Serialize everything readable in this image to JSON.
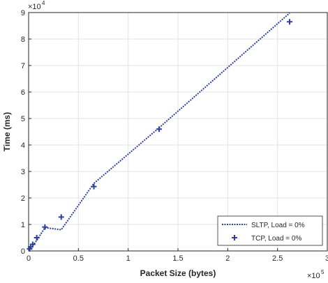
{
  "chart_data": {
    "type": "line",
    "x_label": "Packet Size (bytes)",
    "y_label": "Time (ms)",
    "x_multiplier": {
      "base": "×10",
      "exponent": "5"
    },
    "y_multiplier": {
      "base": "×10",
      "exponent": "4"
    },
    "x": [
      1024,
      2048,
      4096,
      8192,
      16384,
      32768,
      65536,
      131072,
      262144
    ],
    "series": [
      {
        "name": "SLTP, Load = 0%",
        "color": "#2e3f9e",
        "style": "dotted",
        "values": [
          500,
          1200,
          2000,
          4000,
          8800,
          8000,
          25500,
          46500,
          89800
        ]
      },
      {
        "name": "TCP, Load = 0%",
        "color": "#2e3f9e",
        "style": "plus",
        "values": [
          800,
          1500,
          2500,
          5000,
          9000,
          12800,
          24300,
          46000,
          86500
        ]
      }
    ],
    "xlim": [
      0,
      300000
    ],
    "ylim": [
      0,
      90000
    ],
    "xticks": [
      0,
      {
        "value": 50000,
        "label": "0.5"
      },
      {
        "value": 100000,
        "label": "1"
      },
      {
        "value": 150000,
        "label": "1.5"
      },
      {
        "value": 200000,
        "label": "2"
      },
      {
        "value": 250000,
        "label": "2.5"
      },
      {
        "value": 300000,
        "label": "3"
      }
    ],
    "yticks": [
      0,
      {
        "value": 10000,
        "label": "1"
      },
      {
        "value": 20000,
        "label": "2"
      },
      {
        "value": 30000,
        "label": "3"
      },
      {
        "value": 40000,
        "label": "4"
      },
      {
        "value": 50000,
        "label": "5"
      },
      {
        "value": 60000,
        "label": "6"
      },
      {
        "value": 70000,
        "label": "7"
      },
      {
        "value": 80000,
        "label": "8"
      },
      {
        "value": 90000,
        "label": "9"
      }
    ],
    "grid": true,
    "legend": "lower right"
  }
}
